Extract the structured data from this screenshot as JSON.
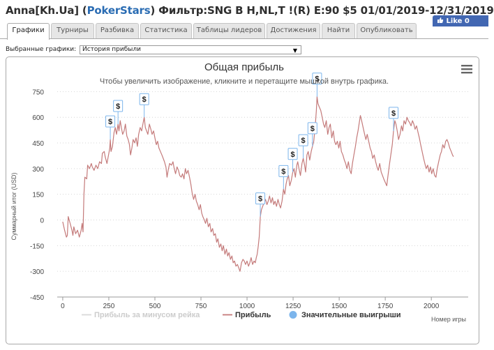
{
  "window": {
    "title_prefix": "Anna[Kh.Ua] (",
    "title_site": "PokerStars",
    "title_suffix": ") Фильтр:SNG B H,NL,T !(R) E:90 $5 01/01/2019-12/31/2019",
    "like_label": "Like 0"
  },
  "tabs": [
    {
      "label": "Графики",
      "active": true
    },
    {
      "label": "Турниры",
      "active": false
    },
    {
      "label": "Разбивка",
      "active": false
    },
    {
      "label": "Статистика",
      "active": false
    },
    {
      "label": "Таблицы лидеров",
      "active": false
    },
    {
      "label": "Достижения",
      "active": false
    },
    {
      "label": "Найти",
      "active": false
    },
    {
      "label": "Опубликовать",
      "active": false
    }
  ],
  "selector": {
    "label": "Выбранные графики:",
    "value": "История прибыли"
  },
  "chart_data": {
    "type": "line",
    "title": "Общая прибыль",
    "subtitle": "Чтобы увеличить изображение, кликните и перетащите мышкой внутрь графика.",
    "xlabel": "Номер игры",
    "ylabel": "Суммарный итог (USD)",
    "xlim": [
      -30,
      2200
    ],
    "ylim": [
      -450,
      780
    ],
    "xticks": [
      0,
      250,
      500,
      750,
      1000,
      1250,
      1500,
      1750,
      2000
    ],
    "yticks": [
      -450,
      -300,
      -150,
      0,
      150,
      300,
      450,
      600,
      750
    ],
    "series": [
      {
        "name": "Прибыль",
        "color": "#c47a7a",
        "points": [
          [
            0,
            -10
          ],
          [
            10,
            -60
          ],
          [
            20,
            -100
          ],
          [
            25,
            -90
          ],
          [
            30,
            20
          ],
          [
            40,
            -20
          ],
          [
            50,
            -60
          ],
          [
            55,
            -90
          ],
          [
            60,
            -40
          ],
          [
            70,
            -80
          ],
          [
            80,
            -60
          ],
          [
            90,
            -100
          ],
          [
            100,
            -60
          ],
          [
            105,
            -20
          ],
          [
            110,
            -70
          ],
          [
            115,
            150
          ],
          [
            120,
            250
          ],
          [
            130,
            240
          ],
          [
            135,
            320
          ],
          [
            145,
            300
          ],
          [
            155,
            330
          ],
          [
            160,
            310
          ],
          [
            170,
            290
          ],
          [
            180,
            320
          ],
          [
            190,
            300
          ],
          [
            200,
            340
          ],
          [
            210,
            330
          ],
          [
            215,
            390
          ],
          [
            225,
            400
          ],
          [
            230,
            370
          ],
          [
            240,
            330
          ],
          [
            250,
            390
          ],
          [
            255,
            420
          ],
          [
            258,
            470
          ],
          [
            262,
            400
          ],
          [
            270,
            430
          ],
          [
            278,
            510
          ],
          [
            285,
            540
          ],
          [
            292,
            500
          ],
          [
            300,
            560
          ],
          [
            305,
            520
          ],
          [
            312,
            580
          ],
          [
            318,
            540
          ],
          [
            325,
            500
          ],
          [
            333,
            520
          ],
          [
            340,
            560
          ],
          [
            348,
            490
          ],
          [
            355,
            470
          ],
          [
            362,
            440
          ],
          [
            368,
            380
          ],
          [
            375,
            420
          ],
          [
            382,
            470
          ],
          [
            390,
            450
          ],
          [
            398,
            480
          ],
          [
            405,
            430
          ],
          [
            412,
            500
          ],
          [
            420,
            540
          ],
          [
            428,
            520
          ],
          [
            435,
            560
          ],
          [
            442,
            600
          ],
          [
            448,
            540
          ],
          [
            455,
            520
          ],
          [
            462,
            500
          ],
          [
            470,
            560
          ],
          [
            478,
            530
          ],
          [
            485,
            500
          ],
          [
            493,
            520
          ],
          [
            500,
            480
          ],
          [
            508,
            440
          ],
          [
            515,
            460
          ],
          [
            522,
            420
          ],
          [
            530,
            400
          ],
          [
            538,
            380
          ],
          [
            545,
            360
          ],
          [
            552,
            340
          ],
          [
            560,
            310
          ],
          [
            566,
            250
          ],
          [
            572,
            290
          ],
          [
            580,
            330
          ],
          [
            590,
            320
          ],
          [
            598,
            340
          ],
          [
            605,
            300
          ],
          [
            612,
            270
          ],
          [
            620,
            310
          ],
          [
            628,
            290
          ],
          [
            635,
            260
          ],
          [
            643,
            250
          ],
          [
            650,
            270
          ],
          [
            658,
            240
          ],
          [
            665,
            300
          ],
          [
            672,
            270
          ],
          [
            680,
            290
          ],
          [
            688,
            250
          ],
          [
            695,
            210
          ],
          [
            702,
            160
          ],
          [
            710,
            120
          ],
          [
            718,
            150
          ],
          [
            725,
            110
          ],
          [
            732,
            90
          ],
          [
            740,
            60
          ],
          [
            747,
            90
          ],
          [
            754,
            40
          ],
          [
            760,
            20
          ],
          [
            768,
            0
          ],
          [
            775,
            -20
          ],
          [
            782,
            10
          ],
          [
            790,
            -40
          ],
          [
            798,
            -20
          ],
          [
            805,
            -70
          ],
          [
            813,
            -50
          ],
          [
            820,
            -90
          ],
          [
            828,
            -80
          ],
          [
            835,
            -130
          ],
          [
            842,
            -110
          ],
          [
            850,
            -160
          ],
          [
            858,
            -140
          ],
          [
            865,
            -180
          ],
          [
            872,
            -150
          ],
          [
            880,
            -200
          ],
          [
            888,
            -170
          ],
          [
            895,
            -210
          ],
          [
            902,
            -190
          ],
          [
            910,
            -230
          ],
          [
            918,
            -210
          ],
          [
            925,
            -250
          ],
          [
            932,
            -240
          ],
          [
            940,
            -270
          ],
          [
            948,
            -260
          ],
          [
            955,
            -280
          ],
          [
            962,
            -300
          ],
          [
            970,
            -250
          ],
          [
            978,
            -230
          ],
          [
            985,
            -240
          ],
          [
            992,
            -260
          ],
          [
            1000,
            -240
          ],
          [
            1008,
            -270
          ],
          [
            1015,
            -250
          ],
          [
            1022,
            -220
          ],
          [
            1030,
            -260
          ],
          [
            1038,
            -240
          ],
          [
            1045,
            -250
          ],
          [
            1050,
            -220
          ],
          [
            1055,
            -200
          ],
          [
            1060,
            -160
          ],
          [
            1066,
            -100
          ],
          [
            1072,
            20
          ],
          [
            1078,
            60
          ],
          [
            1085,
            80
          ],
          [
            1092,
            100
          ],
          [
            1100,
            120
          ],
          [
            1108,
            90
          ],
          [
            1115,
            110
          ],
          [
            1122,
            140
          ],
          [
            1130,
            100
          ],
          [
            1138,
            130
          ],
          [
            1145,
            90
          ],
          [
            1152,
            110
          ],
          [
            1160,
            80
          ],
          [
            1168,
            120
          ],
          [
            1175,
            90
          ],
          [
            1182,
            70
          ],
          [
            1190,
            110
          ],
          [
            1198,
            180
          ],
          [
            1205,
            150
          ],
          [
            1212,
            210
          ],
          [
            1218,
            240
          ],
          [
            1225,
            260
          ],
          [
            1232,
            200
          ],
          [
            1240,
            230
          ],
          [
            1248,
            280
          ],
          [
            1255,
            300
          ],
          [
            1262,
            250
          ],
          [
            1270,
            320
          ],
          [
            1275,
            340
          ],
          [
            1282,
            300
          ],
          [
            1290,
            260
          ],
          [
            1298,
            330
          ],
          [
            1305,
            360
          ],
          [
            1312,
            320
          ],
          [
            1318,
            280
          ],
          [
            1325,
            380
          ],
          [
            1332,
            400
          ],
          [
            1340,
            350
          ],
          [
            1348,
            400
          ],
          [
            1355,
            430
          ],
          [
            1362,
            460
          ],
          [
            1370,
            550
          ],
          [
            1376,
            640
          ],
          [
            1380,
            720
          ],
          [
            1385,
            680
          ],
          [
            1392,
            660
          ],
          [
            1400,
            640
          ],
          [
            1408,
            600
          ],
          [
            1415,
            560
          ],
          [
            1422,
            540
          ],
          [
            1430,
            580
          ],
          [
            1438,
            500
          ],
          [
            1445,
            540
          ],
          [
            1452,
            560
          ],
          [
            1460,
            480
          ],
          [
            1468,
            520
          ],
          [
            1475,
            460
          ],
          [
            1482,
            440
          ],
          [
            1490,
            460
          ],
          [
            1498,
            420
          ],
          [
            1505,
            460
          ],
          [
            1512,
            400
          ],
          [
            1520,
            380
          ],
          [
            1528,
            350
          ],
          [
            1535,
            330
          ],
          [
            1542,
            300
          ],
          [
            1550,
            340
          ],
          [
            1558,
            290
          ],
          [
            1565,
            270
          ],
          [
            1572,
            330
          ],
          [
            1580,
            380
          ],
          [
            1588,
            430
          ],
          [
            1595,
            480
          ],
          [
            1602,
            520
          ],
          [
            1608,
            560
          ],
          [
            1615,
            610
          ],
          [
            1622,
            580
          ],
          [
            1630,
            540
          ],
          [
            1638,
            500
          ],
          [
            1645,
            470
          ],
          [
            1652,
            500
          ],
          [
            1660,
            460
          ],
          [
            1668,
            420
          ],
          [
            1675,
            400
          ],
          [
            1682,
            360
          ],
          [
            1690,
            380
          ],
          [
            1698,
            340
          ],
          [
            1705,
            310
          ],
          [
            1712,
            290
          ],
          [
            1720,
            330
          ],
          [
            1728,
            280
          ],
          [
            1735,
            260
          ],
          [
            1742,
            240
          ],
          [
            1750,
            220
          ],
          [
            1758,
            200
          ],
          [
            1765,
            260
          ],
          [
            1772,
            320
          ],
          [
            1780,
            380
          ],
          [
            1788,
            440
          ],
          [
            1795,
            520
          ],
          [
            1802,
            580
          ],
          [
            1808,
            560
          ],
          [
            1815,
            520
          ],
          [
            1822,
            470
          ],
          [
            1830,
            500
          ],
          [
            1838,
            550
          ],
          [
            1845,
            520
          ],
          [
            1852,
            580
          ],
          [
            1860,
            560
          ],
          [
            1868,
            600
          ],
          [
            1875,
            580
          ],
          [
            1882,
            570
          ],
          [
            1890,
            550
          ],
          [
            1898,
            580
          ],
          [
            1905,
            560
          ],
          [
            1912,
            530
          ],
          [
            1920,
            550
          ],
          [
            1928,
            510
          ],
          [
            1935,
            480
          ],
          [
            1942,
            440
          ],
          [
            1950,
            400
          ],
          [
            1958,
            360
          ],
          [
            1965,
            330
          ],
          [
            1972,
            300
          ],
          [
            1980,
            320
          ],
          [
            1988,
            280
          ],
          [
            1995,
            310
          ],
          [
            2002,
            270
          ],
          [
            2010,
            300
          ],
          [
            2018,
            260
          ],
          [
            2025,
            250
          ],
          [
            2032,
            300
          ],
          [
            2040,
            340
          ],
          [
            2048,
            380
          ],
          [
            2055,
            400
          ],
          [
            2062,
            440
          ],
          [
            2070,
            420
          ],
          [
            2078,
            460
          ],
          [
            2085,
            470
          ],
          [
            2092,
            450
          ],
          [
            2100,
            420
          ],
          [
            2108,
            400
          ],
          [
            2115,
            380
          ],
          [
            2120,
            370
          ]
        ]
      },
      {
        "name": "Прибыль за минусом рейка",
        "color": "#cccccc",
        "points": []
      }
    ],
    "markers": [
      {
        "x": 258,
        "y": 470,
        "label": "$"
      },
      {
        "x": 300,
        "y": 560,
        "label": "$"
      },
      {
        "x": 442,
        "y": 600,
        "label": "$"
      },
      {
        "x": 1072,
        "y": 20,
        "label": "$"
      },
      {
        "x": 1198,
        "y": 180,
        "label": "$"
      },
      {
        "x": 1248,
        "y": 280,
        "label": "$"
      },
      {
        "x": 1305,
        "y": 360,
        "label": "$"
      },
      {
        "x": 1355,
        "y": 430,
        "label": "$"
      },
      {
        "x": 1380,
        "y": 720,
        "label": "$"
      },
      {
        "x": 1795,
        "y": 520,
        "label": "$"
      }
    ],
    "legend": [
      {
        "name": "Прибыль за минусом рейка",
        "symbol": "line",
        "color": "#cccccc",
        "muted": true
      },
      {
        "name": "Прибыль",
        "symbol": "line",
        "color": "#c47a7a",
        "muted": false
      },
      {
        "name": "Значительные выигрыши",
        "symbol": "dot",
        "color": "#7cb5ec",
        "muted": false
      }
    ]
  }
}
